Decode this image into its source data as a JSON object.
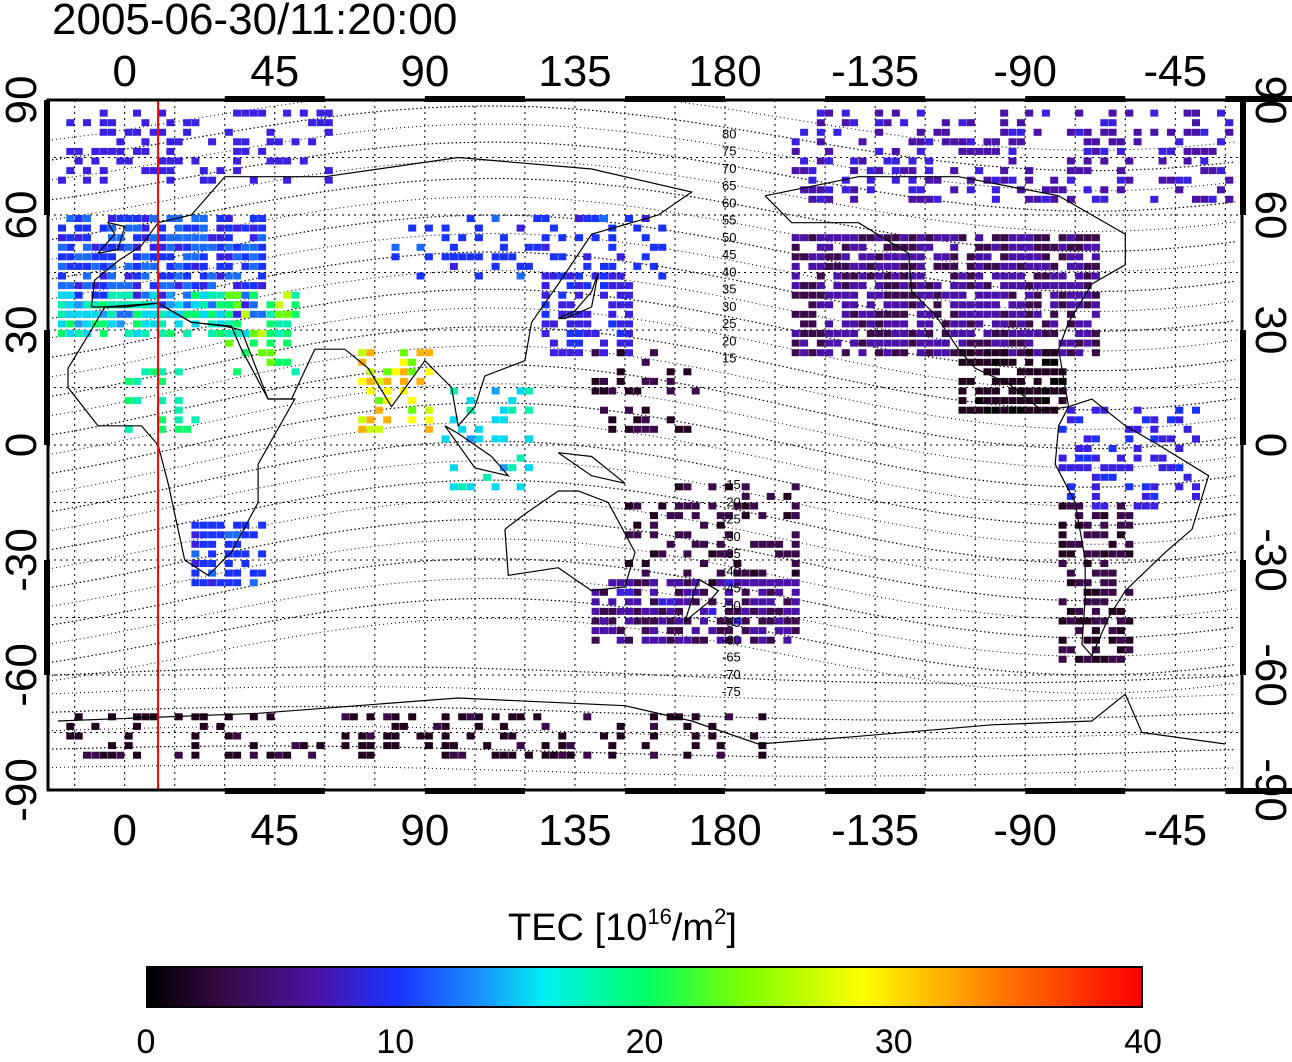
{
  "title": "2005-06-30/11:20:00",
  "map": {
    "projection": "equirectangular",
    "lon_range": [
      -23,
      335
    ],
    "lat_range": [
      -90,
      90
    ],
    "grid": "on",
    "top_tick_labels": [
      "0",
      "45",
      "90",
      "135",
      "180",
      "-135",
      "-90",
      "-45"
    ],
    "bottom_tick_labels": [
      "0",
      "45",
      "90",
      "135",
      "180",
      "-135",
      "-90",
      "-45"
    ],
    "left_tick_labels": [
      "90",
      "60",
      "30",
      "0",
      "-30",
      "-60",
      "-90"
    ],
    "right_tick_labels": [
      "90",
      "60",
      "30",
      "0",
      "-30",
      "-60",
      "-90"
    ],
    "red_line_longitude": 10,
    "red_line_color": "#ff0000",
    "contour_labels": [
      "80",
      "75",
      "70",
      "65",
      "60",
      "55",
      "50",
      "45",
      "40",
      "35",
      "30",
      "25",
      "20",
      "15",
      "-15",
      "-20",
      "-25",
      "-30",
      "-35",
      "-40",
      "-45",
      "-50",
      "-55",
      "-60",
      "-65",
      "-70",
      "-75"
    ]
  },
  "colorbar": {
    "title_prefix": "TEC  [10",
    "title_exp1": "16",
    "title_mid": "/m",
    "title_exp2": "2",
    "title_suffix": "]",
    "ticks": [
      "0",
      "10",
      "20",
      "30",
      "40"
    ],
    "range": [
      0,
      40
    ],
    "colors": [
      "#000000",
      "#4a12a6",
      "#1a32ff",
      "#00f0f0",
      "#00ff66",
      "#ffff00",
      "#ff8000",
      "#ff0000"
    ]
  }
}
